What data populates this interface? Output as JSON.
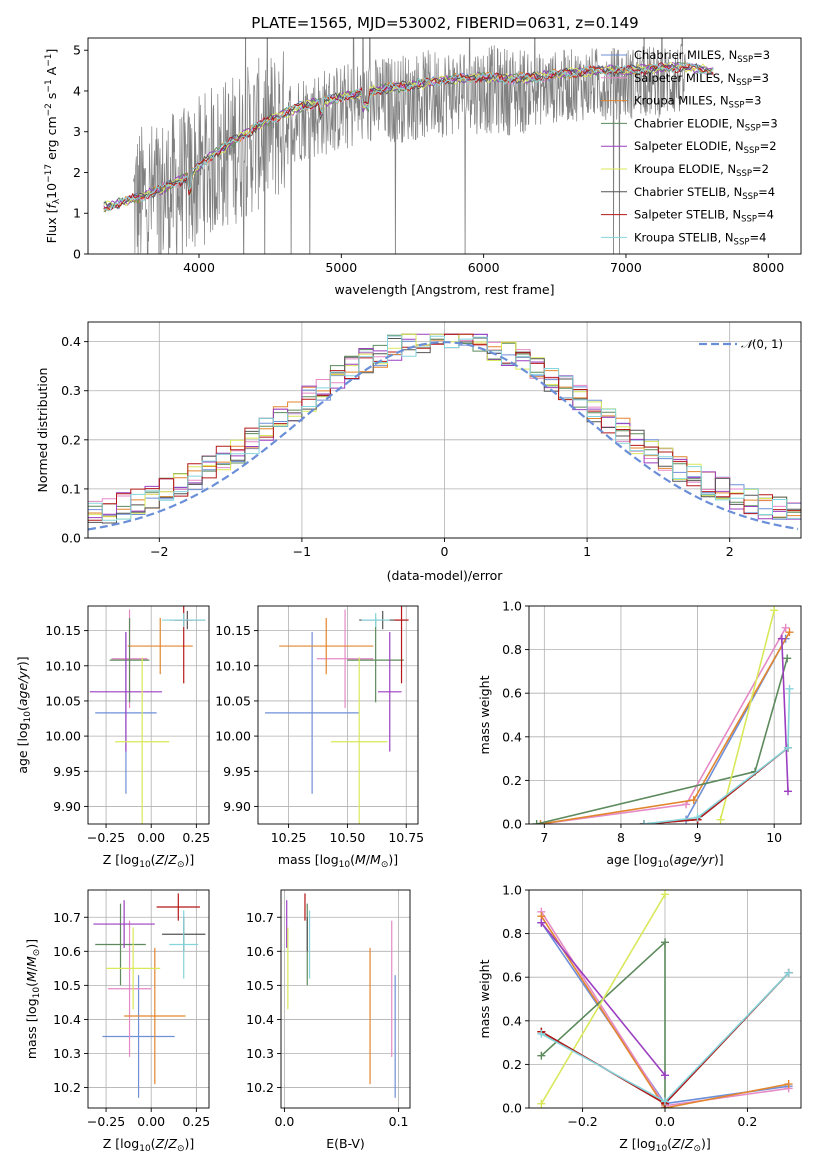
{
  "colors": {
    "Chabrier MILES": "#6f8fd9",
    "Salpeter MILES": "#e58ac7",
    "Kroupa MILES": "#e2862e",
    "Chabrier ELODIE": "#5c8a5c",
    "Salpeter ELODIE": "#9b3fc0",
    "Kroupa ELODIE": "#d9e85a",
    "Chabrier STELIB": "#555555",
    "Salpeter STELIB": "#b51818",
    "Kroupa STELIB": "#85d5dc",
    "observed": "#808080",
    "gaussian": "#6a8fd8"
  },
  "chart_data": [
    {
      "id": "spectrum",
      "type": "line",
      "title": "PLATE=1565, MJD=53002, FIBERID=0631, z=0.149",
      "xlabel": "wavelength [Angstrom, rest frame]",
      "ylabel": "Flux [f_λ 10^-17 erg cm^-2 s^-1 Å^-1]",
      "xlim": [
        3220,
        8230
      ],
      "ylim": [
        0,
        5.3
      ],
      "xticks": [
        4000,
        5000,
        6000,
        7000,
        8000
      ],
      "yticks": [
        0,
        1,
        2,
        3,
        4,
        5
      ],
      "legend_position": "upper right",
      "legend": [
        {
          "label": "Chabrier MILES, N_SSP=3",
          "main": "Chabrier MILES, N",
          "sub": "SSP",
          "tail": "=3",
          "series": "Chabrier MILES"
        },
        {
          "label": "Salpeter MILES, N_SSP=3",
          "main": "Salpeter MILES, N",
          "sub": "SSP",
          "tail": "=3",
          "series": "Salpeter MILES"
        },
        {
          "label": "Kroupa MILES, N_SSP=3",
          "main": "Kroupa MILES, N",
          "sub": "SSP",
          "tail": "=3",
          "series": "Kroupa MILES"
        },
        {
          "label": "Chabrier ELODIE, N_SSP=3",
          "main": "Chabrier ELODIE, N",
          "sub": "SSP",
          "tail": "=3",
          "series": "Chabrier ELODIE"
        },
        {
          "label": "Salpeter ELODIE, N_SSP=2",
          "main": "Salpeter ELODIE, N",
          "sub": "SSP",
          "tail": "=2",
          "series": "Salpeter ELODIE"
        },
        {
          "label": "Kroupa ELODIE, N_SSP=2",
          "main": "Kroupa ELODIE, N",
          "sub": "SSP",
          "tail": "=2",
          "series": "Kroupa ELODIE"
        },
        {
          "label": "Chabrier STELIB, N_SSP=4",
          "main": "Chabrier STELIB, N",
          "sub": "SSP",
          "tail": "=4",
          "series": "Chabrier STELIB"
        },
        {
          "label": "Salpeter STELIB, N_SSP=4",
          "main": "Salpeter STELIB, N",
          "sub": "SSP",
          "tail": "=4",
          "series": "Salpeter STELIB"
        },
        {
          "label": "Kroupa STELIB, N_SSP=4",
          "main": "Kroupa STELIB, N",
          "sub": "SSP",
          "tail": "=4",
          "series": "Kroupa STELIB"
        }
      ],
      "continuum": {
        "x": [
          3330,
          3500,
          3700,
          3900,
          4000,
          4100,
          4300,
          4500,
          4700,
          5000,
          5200,
          5400,
          5600,
          5800,
          6000,
          6200,
          6400,
          6600,
          6800,
          7000,
          7200,
          7400,
          7600
        ],
        "y": [
          1.15,
          1.3,
          1.55,
          1.85,
          2.15,
          2.45,
          2.9,
          3.3,
          3.6,
          3.85,
          4.0,
          4.1,
          4.2,
          4.3,
          4.35,
          4.3,
          4.35,
          4.45,
          4.5,
          4.5,
          4.55,
          4.6,
          4.5
        ]
      },
      "observed_range": [
        3540,
        7420
      ]
    },
    {
      "id": "residuals",
      "type": "line",
      "xlabel": "(data-model)/error",
      "ylabel": "Normed distribution",
      "xlim": [
        -2.5,
        2.5
      ],
      "ylim": [
        0,
        0.44
      ],
      "xticks": [
        -2,
        -1,
        0,
        1,
        2
      ],
      "yticks": [
        0.0,
        0.1,
        0.2,
        0.3,
        0.4
      ],
      "legend": "N(0,1)",
      "legend_position": "upper right",
      "gaussian": {
        "mean": 0,
        "sigma": 1,
        "name": "N(0,1)"
      }
    },
    {
      "id": "age_vs_Z",
      "type": "scatter",
      "xlabel": "Z [log10(Z/Z⊙)]",
      "ylabel": "age [log10(age/yr)]",
      "xlim": [
        -0.35,
        0.32
      ],
      "ylim": [
        9.875,
        10.185
      ],
      "xticks": [
        -0.25,
        0.0,
        0.25
      ],
      "yticks": [
        9.9,
        9.95,
        10.0,
        10.05,
        10.1,
        10.15
      ],
      "points": [
        {
          "series": "Chabrier MILES",
          "x": -0.14,
          "xerr": 0.17,
          "y": 10.033,
          "yerr": 0.115
        },
        {
          "series": "Salpeter MILES",
          "x": -0.12,
          "xerr": 0.1,
          "y": 10.11,
          "yerr": 0.07
        },
        {
          "series": "Kroupa MILES",
          "x": 0.05,
          "xerr": 0.18,
          "y": 10.128,
          "yerr": 0.04
        },
        {
          "series": "Chabrier ELODIE",
          "x": -0.12,
          "xerr": 0.11,
          "y": 10.108,
          "yerr": 0.06
        },
        {
          "series": "Salpeter ELODIE",
          "x": -0.14,
          "xerr": 0.2,
          "y": 10.063,
          "yerr": 0.085
        },
        {
          "series": "Kroupa ELODIE",
          "x": -0.05,
          "xerr": 0.15,
          "y": 9.992,
          "yerr": 0.12
        },
        {
          "series": "Chabrier STELIB",
          "x": 0.2,
          "xerr": 0.1,
          "y": 10.165,
          "yerr": 0.013
        },
        {
          "series": "Salpeter STELIB",
          "x": 0.18,
          "xerr": 0.05,
          "y": 10.165,
          "yerr": 0.09
        },
        {
          "series": "Kroupa STELIB",
          "x": 0.18,
          "xerr": 0.12,
          "y": 10.165,
          "yerr": 0.01
        }
      ]
    },
    {
      "id": "age_vs_mass",
      "type": "scatter",
      "xlabel": "mass [log10(M/M⊙)]",
      "ylabel": "",
      "xlim": [
        10.12,
        10.8
      ],
      "ylim": [
        9.875,
        10.185
      ],
      "xticks": [
        10.25,
        10.5,
        10.75
      ],
      "yticks": [
        9.9,
        9.95,
        10.0,
        10.05,
        10.1,
        10.15
      ],
      "points": [
        {
          "series": "Chabrier MILES",
          "x": 10.35,
          "xerr": 0.2,
          "y": 10.033,
          "yerr": 0.115
        },
        {
          "series": "Salpeter MILES",
          "x": 10.49,
          "xerr": 0.12,
          "y": 10.11,
          "yerr": 0.07
        },
        {
          "series": "Kroupa MILES",
          "x": 10.41,
          "xerr": 0.2,
          "y": 10.128,
          "yerr": 0.04
        },
        {
          "series": "Chabrier ELODIE",
          "x": 10.62,
          "xerr": 0.12,
          "y": 10.108,
          "yerr": 0.06
        },
        {
          "series": "Salpeter ELODIE",
          "x": 10.68,
          "xerr": 0.05,
          "y": 10.063,
          "yerr": 0.085
        },
        {
          "series": "Kroupa ELODIE",
          "x": 10.55,
          "xerr": 0.12,
          "y": 9.992,
          "yerr": 0.12
        },
        {
          "series": "Chabrier STELIB",
          "x": 10.65,
          "xerr": 0.1,
          "y": 10.165,
          "yerr": 0.013
        },
        {
          "series": "Salpeter STELIB",
          "x": 10.73,
          "xerr": 0.03,
          "y": 10.165,
          "yerr": 0.09
        },
        {
          "series": "Kroupa STELIB",
          "x": 10.62,
          "xerr": 0.06,
          "y": 10.165,
          "yerr": 0.01
        }
      ]
    },
    {
      "id": "massweight_vs_age",
      "type": "line",
      "xlabel": "age [log10(age/yr)]",
      "ylabel": "mass weight",
      "xlim": [
        6.8,
        10.35
      ],
      "ylim": [
        0,
        1.0
      ],
      "xticks": [
        7,
        8,
        9,
        10
      ],
      "yticks": [
        0.0,
        0.2,
        0.4,
        0.6,
        0.8,
        1.0
      ],
      "series": [
        {
          "name": "Chabrier MILES",
          "x": [
            8.3,
            8.85,
            10.15
          ],
          "y": [
            0.0,
            0.02,
            0.85
          ]
        },
        {
          "name": "Salpeter MILES",
          "x": [
            6.95,
            8.85,
            10.15
          ],
          "y": [
            0.0,
            0.09,
            0.9
          ]
        },
        {
          "name": "Kroupa MILES",
          "x": [
            6.95,
            8.95,
            10.2
          ],
          "y": [
            0.0,
            0.11,
            0.88
          ]
        },
        {
          "name": "Chabrier ELODIE",
          "x": [
            6.9,
            9.75,
            10.17
          ],
          "y": [
            0.0,
            0.24,
            0.76
          ]
        },
        {
          "name": "Salpeter ELODIE",
          "x": [
            10.1,
            10.18
          ],
          "y": [
            0.85,
            0.15
          ]
        },
        {
          "name": "Kroupa ELODIE",
          "x": [
            9.3,
            10.0
          ],
          "y": [
            0.02,
            0.98
          ]
        },
        {
          "name": "Chabrier STELIB",
          "x": [
            8.3,
            9.0,
            10.18
          ],
          "y": [
            0.0,
            0.02,
            0.35
          ]
        },
        {
          "name": "Salpeter STELIB",
          "x": [
            8.3,
            9.0,
            10.18
          ],
          "y": [
            0.0,
            0.02,
            0.35
          ]
        },
        {
          "name": "Kroupa STELIB",
          "x": [
            8.3,
            9.0,
            10.18,
            10.2
          ],
          "y": [
            0.0,
            0.03,
            0.35,
            0.62
          ]
        }
      ]
    },
    {
      "id": "mass_vs_Z",
      "type": "scatter",
      "xlabel": "Z [log10(Z/Z⊙)]",
      "ylabel": "mass [log10(M/M⊙)]",
      "xlim": [
        -0.35,
        0.32
      ],
      "ylim": [
        10.14,
        10.78
      ],
      "xticks": [
        -0.25,
        0.0,
        0.25
      ],
      "yticks": [
        10.2,
        10.3,
        10.4,
        10.5,
        10.6,
        10.7
      ],
      "points": [
        {
          "series": "Chabrier MILES",
          "x": -0.07,
          "xerr": 0.2,
          "y": 10.35,
          "yerr": 0.18
        },
        {
          "series": "Salpeter MILES",
          "x": -0.12,
          "xerr": 0.12,
          "y": 10.49,
          "yerr": 0.2
        },
        {
          "series": "Kroupa MILES",
          "x": 0.02,
          "xerr": 0.17,
          "y": 10.41,
          "yerr": 0.2
        },
        {
          "series": "Chabrier ELODIE",
          "x": -0.17,
          "xerr": 0.14,
          "y": 10.62,
          "yerr": 0.12
        },
        {
          "series": "Salpeter ELODIE",
          "x": -0.15,
          "xerr": 0.17,
          "y": 10.68,
          "yerr": 0.07
        },
        {
          "series": "Kroupa ELODIE",
          "x": -0.1,
          "xerr": 0.15,
          "y": 10.55,
          "yerr": 0.12
        },
        {
          "series": "Chabrier STELIB",
          "x": 0.18,
          "xerr": 0.12,
          "y": 10.65,
          "yerr": 0.05
        },
        {
          "series": "Salpeter STELIB",
          "x": 0.15,
          "xerr": 0.12,
          "y": 10.73,
          "yerr": 0.04
        },
        {
          "series": "Kroupa STELIB",
          "x": 0.18,
          "xerr": 0.08,
          "y": 10.62,
          "yerr": 0.1
        }
      ]
    },
    {
      "id": "mass_vs_EBV",
      "type": "scatter",
      "xlabel": "E(B-V)",
      "ylabel": "",
      "xlim": [
        -0.003,
        0.11
      ],
      "ylim": [
        10.14,
        10.78
      ],
      "xticks": [
        0.0,
        0.1
      ],
      "yticks": [
        10.2,
        10.3,
        10.4,
        10.5,
        10.6,
        10.7
      ],
      "points": [
        {
          "series": "Chabrier MILES",
          "x": 0.097,
          "xerr": 0,
          "y": 10.35,
          "yerr": 0.18
        },
        {
          "series": "Salpeter MILES",
          "x": 0.094,
          "xerr": 0,
          "y": 10.49,
          "yerr": 0.2
        },
        {
          "series": "Kroupa MILES",
          "x": 0.075,
          "xerr": 0,
          "y": 10.41,
          "yerr": 0.2
        },
        {
          "series": "Chabrier ELODIE",
          "x": 0.02,
          "xerr": 0,
          "y": 10.62,
          "yerr": 0.12
        },
        {
          "series": "Salpeter ELODIE",
          "x": 0.002,
          "xerr": 0,
          "y": 10.68,
          "yerr": 0.07
        },
        {
          "series": "Kroupa ELODIE",
          "x": 0.003,
          "xerr": 0,
          "y": 10.55,
          "yerr": 0.12
        },
        {
          "series": "Chabrier STELIB",
          "x": 0.02,
          "xerr": 0,
          "y": 10.65,
          "yerr": 0.05
        },
        {
          "series": "Salpeter STELIB",
          "x": 0.018,
          "xerr": 0,
          "y": 10.73,
          "yerr": 0.04
        },
        {
          "series": "Kroupa STELIB",
          "x": 0.022,
          "xerr": 0,
          "y": 10.62,
          "yerr": 0.1
        }
      ]
    },
    {
      "id": "massweight_vs_Z",
      "type": "line",
      "xlabel": "Z [log10(Z/Z⊙)]",
      "ylabel": "mass weight",
      "xlim": [
        -0.33,
        0.33
      ],
      "ylim": [
        0,
        1.0
      ],
      "xticks": [
        -0.2,
        0.0,
        0.2
      ],
      "yticks": [
        0.0,
        0.2,
        0.4,
        0.6,
        0.8,
        1.0
      ],
      "series": [
        {
          "name": "Chabrier MILES",
          "x": [
            -0.3,
            0.0,
            0.3
          ],
          "y": [
            0.85,
            0.02,
            0.1
          ]
        },
        {
          "name": "Salpeter MILES",
          "x": [
            -0.3,
            0.0,
            0.3
          ],
          "y": [
            0.9,
            0.01,
            0.09
          ]
        },
        {
          "name": "Kroupa MILES",
          "x": [
            -0.3,
            0.0,
            0.3
          ],
          "y": [
            0.88,
            0.0,
            0.11
          ]
        },
        {
          "name": "Chabrier ELODIE",
          "x": [
            -0.3,
            0.0,
            0.0
          ],
          "y": [
            0.24,
            0.76,
            0.0
          ]
        },
        {
          "name": "Salpeter ELODIE",
          "x": [
            -0.3,
            0.0
          ],
          "y": [
            0.85,
            0.15
          ]
        },
        {
          "name": "Kroupa ELODIE",
          "x": [
            -0.3,
            0.0
          ],
          "y": [
            0.02,
            0.98
          ]
        },
        {
          "name": "Chabrier STELIB",
          "x": [
            -0.3,
            0.0,
            0.3
          ],
          "y": [
            0.35,
            0.02,
            0.62
          ]
        },
        {
          "name": "Salpeter STELIB",
          "x": [
            -0.3,
            0.0,
            0.3
          ],
          "y": [
            0.35,
            0.02,
            0.62
          ]
        },
        {
          "name": "Kroupa STELIB",
          "x": [
            -0.3,
            0.0,
            0.3
          ],
          "y": [
            0.34,
            0.03,
            0.62
          ]
        }
      ]
    }
  ]
}
